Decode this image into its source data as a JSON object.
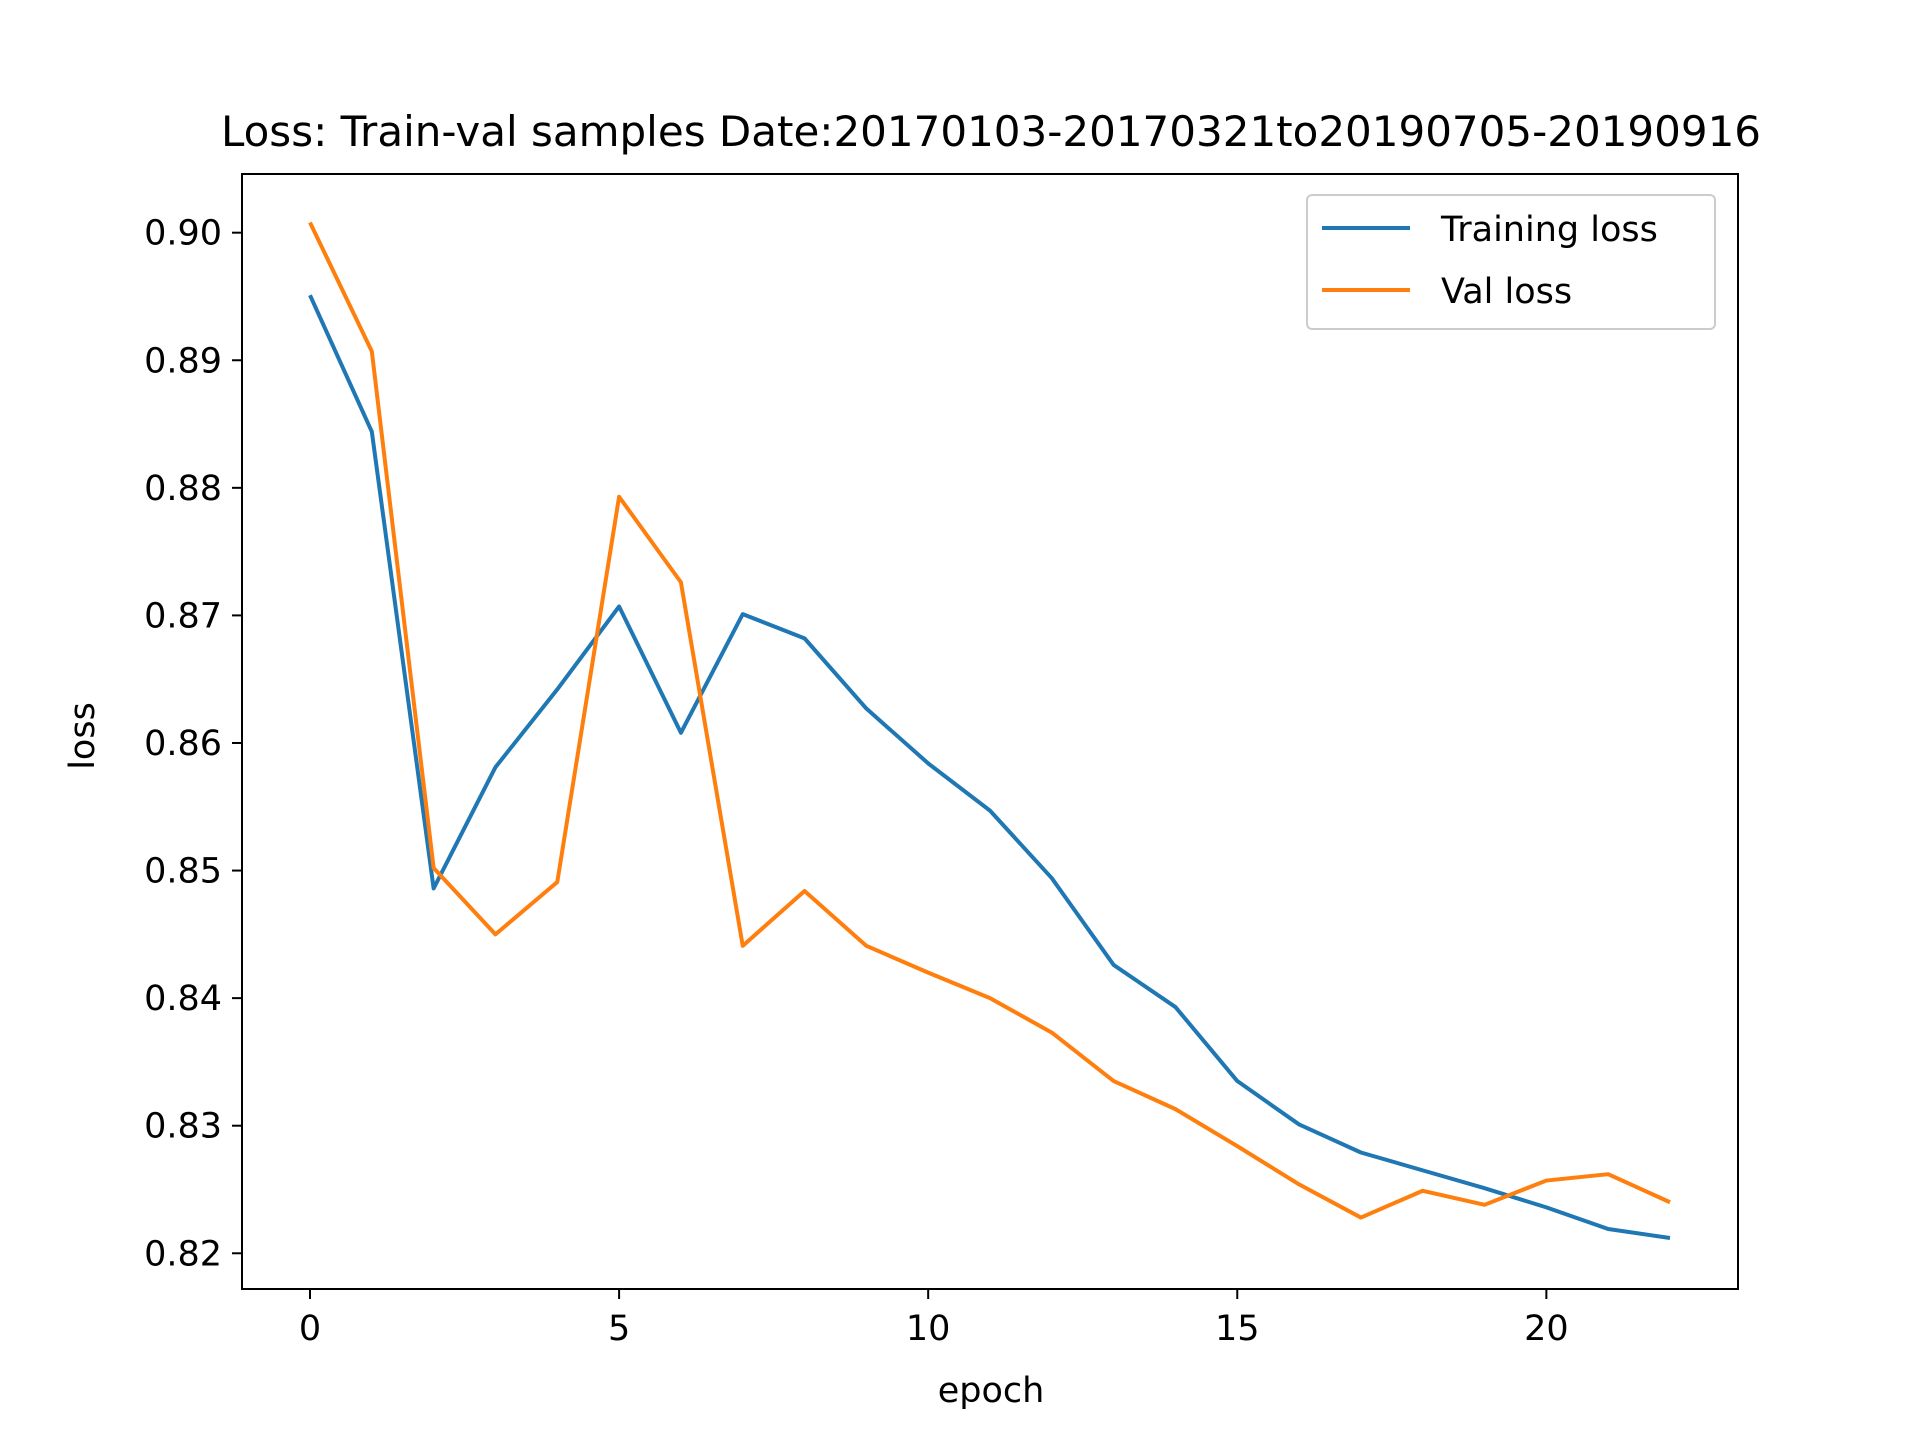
{
  "chart_data": {
    "type": "line",
    "title": "Loss: Train-val samples Date:20170103-20170321to20190705-20190916",
    "xlabel": "epoch",
    "ylabel": "loss",
    "xlim": [
      -1.1,
      23.1
    ],
    "ylim": [
      0.8172,
      0.9046
    ],
    "xticks": [
      0,
      5,
      10,
      15,
      20
    ],
    "yticks": [
      0.82,
      0.83,
      0.84,
      0.85,
      0.86,
      0.87,
      0.88,
      0.89,
      0.9
    ],
    "ytick_labels": [
      "0.82",
      "0.83",
      "0.84",
      "0.85",
      "0.86",
      "0.87",
      "0.88",
      "0.89",
      "0.90"
    ],
    "grid": false,
    "legend_position": "upper right",
    "x": [
      0,
      1,
      2,
      3,
      4,
      5,
      6,
      7,
      8,
      9,
      10,
      11,
      12,
      13,
      14,
      15,
      16,
      17,
      18,
      19,
      20,
      21,
      22
    ],
    "series": [
      {
        "name": "Training loss",
        "color": "#1f77b4",
        "values": [
          0.8951,
          0.8844,
          0.8486,
          0.8581,
          0.8642,
          0.8707,
          0.8608,
          0.8701,
          0.8682,
          0.8627,
          0.8584,
          0.8547,
          0.8494,
          0.8426,
          0.8393,
          0.8335,
          0.8301,
          0.8279,
          0.8265,
          0.8251,
          0.8236,
          0.8219,
          0.8212
        ]
      },
      {
        "name": "Val loss",
        "color": "#ff7f0e",
        "values": [
          0.9008,
          0.8907,
          0.8502,
          0.845,
          0.8491,
          0.8793,
          0.8726,
          0.8441,
          0.8484,
          0.8441,
          0.842,
          0.84,
          0.8373,
          0.8335,
          0.8313,
          0.8284,
          0.8254,
          0.8228,
          0.8249,
          0.8238,
          0.8257,
          0.8262,
          0.824
        ]
      }
    ]
  }
}
